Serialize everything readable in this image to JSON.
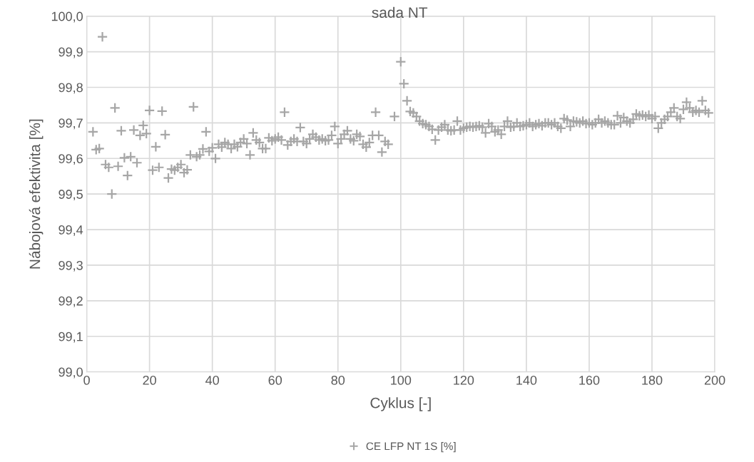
{
  "chart_data": {
    "type": "scatter",
    "title": "sada NT",
    "xlabel": "Cyklus [-]",
    "ylabel": "Nábojová efektivita [%]",
    "xlim": [
      0,
      200
    ],
    "xticks": [
      0,
      20,
      40,
      60,
      80,
      100,
      120,
      140,
      160,
      180,
      200
    ],
    "ylim": [
      99.0,
      100.0
    ],
    "yticks": [
      {
        "value": 99.0,
        "label": "99,0"
      },
      {
        "value": 99.1,
        "label": "99,1"
      },
      {
        "value": 99.2,
        "label": "99,2"
      },
      {
        "value": 99.3,
        "label": "99,3"
      },
      {
        "value": 99.4,
        "label": "99,4"
      },
      {
        "value": 99.5,
        "label": "99,5"
      },
      {
        "value": 99.6,
        "label": "99,6"
      },
      {
        "value": 99.7,
        "label": "99,7"
      },
      {
        "value": 99.8,
        "label": "99,8"
      },
      {
        "value": 99.9,
        "label": "99,9"
      },
      {
        "value": 100.0,
        "label": "100,0"
      }
    ],
    "grid": true,
    "legend": "bottom",
    "marker": "cross",
    "series": [
      {
        "name": "CE LFP NT 1S [%]",
        "color": "#a6a6a6",
        "x": [
          2,
          3,
          4,
          5,
          6,
          7,
          8,
          9,
          10,
          11,
          12,
          13,
          14,
          15,
          16,
          17,
          18,
          19,
          20,
          21,
          22,
          23,
          24,
          25,
          26,
          27,
          28,
          29,
          30,
          31,
          32,
          33,
          34,
          35,
          36,
          37,
          38,
          39,
          40,
          41,
          42,
          43,
          44,
          45,
          46,
          47,
          48,
          49,
          50,
          51,
          52,
          53,
          54,
          55,
          56,
          57,
          58,
          59,
          60,
          61,
          62,
          63,
          64,
          65,
          66,
          67,
          68,
          69,
          70,
          71,
          72,
          73,
          74,
          75,
          76,
          77,
          78,
          79,
          80,
          81,
          82,
          83,
          84,
          85,
          86,
          87,
          88,
          89,
          90,
          91,
          92,
          93,
          94,
          95,
          96,
          98,
          100,
          101,
          102,
          103,
          104,
          105,
          106,
          107,
          108,
          109,
          110,
          111,
          112,
          113,
          114,
          115,
          116,
          117,
          118,
          119,
          120,
          121,
          122,
          123,
          124,
          125,
          126,
          127,
          128,
          129,
          130,
          131,
          132,
          133,
          134,
          135,
          136,
          137,
          138,
          139,
          140,
          141,
          142,
          143,
          144,
          145,
          146,
          147,
          148,
          149,
          150,
          151,
          152,
          153,
          154,
          155,
          156,
          157,
          158,
          159,
          160,
          161,
          162,
          163,
          164,
          165,
          166,
          167,
          168,
          169,
          170,
          171,
          172,
          173,
          174,
          175,
          176,
          177,
          178,
          179,
          180,
          181,
          182,
          183,
          184,
          185,
          186,
          187,
          188,
          189,
          190,
          191,
          192,
          193,
          194,
          195,
          196,
          197,
          198
        ],
        "values": [
          99.675,
          99.625,
          99.628,
          99.942,
          99.583,
          99.575,
          99.5,
          99.742,
          99.578,
          99.678,
          99.602,
          99.552,
          99.605,
          99.68,
          99.588,
          99.665,
          99.693,
          99.67,
          99.735,
          99.567,
          99.633,
          99.575,
          99.733,
          99.667,
          99.545,
          99.57,
          99.567,
          99.575,
          99.583,
          99.56,
          99.568,
          99.61,
          99.745,
          99.605,
          99.61,
          99.627,
          99.675,
          99.62,
          99.63,
          99.6,
          99.64,
          99.632,
          99.645,
          99.64,
          99.628,
          99.64,
          99.633,
          99.645,
          99.655,
          99.642,
          99.61,
          99.672,
          99.652,
          99.645,
          99.628,
          99.628,
          99.658,
          99.65,
          99.655,
          99.66,
          99.652,
          99.73,
          99.638,
          99.648,
          99.655,
          99.648,
          99.687,
          99.648,
          99.642,
          99.655,
          99.668,
          99.66,
          99.652,
          99.655,
          99.65,
          99.652,
          99.665,
          99.69,
          99.642,
          99.655,
          99.668,
          99.678,
          99.655,
          99.65,
          99.668,
          99.662,
          99.64,
          99.632,
          99.645,
          99.665,
          99.73,
          99.665,
          99.618,
          99.648,
          99.64,
          99.718,
          99.872,
          99.81,
          99.762,
          99.732,
          99.728,
          99.718,
          99.705,
          99.698,
          99.695,
          99.69,
          99.682,
          99.652,
          99.68,
          99.688,
          99.695,
          99.68,
          99.678,
          99.68,
          99.705,
          99.68,
          99.685,
          99.688,
          99.69,
          99.688,
          99.69,
          99.692,
          99.688,
          99.672,
          99.698,
          99.69,
          99.675,
          99.68,
          99.668,
          99.69,
          99.705,
          99.688,
          99.69,
          99.7,
          99.69,
          99.692,
          99.695,
          99.7,
          99.69,
          99.695,
          99.698,
          99.692,
          99.7,
          99.7,
          99.695,
          99.7,
          99.69,
          99.685,
          99.712,
          99.708,
          99.69,
          99.705,
          99.703,
          99.7,
          99.705,
          99.698,
          99.7,
          99.695,
          99.7,
          99.71,
          99.7,
          99.705,
          99.7,
          99.695,
          99.695,
          99.72,
          99.7,
          99.715,
          99.705,
          99.7,
          99.71,
          99.725,
          99.72,
          99.722,
          99.718,
          99.722,
          99.712,
          99.718,
          99.685,
          99.7,
          99.71,
          99.718,
          99.73,
          99.742,
          99.718,
          99.712,
          99.738,
          99.758,
          99.742,
          99.73,
          99.735,
          99.73,
          99.762,
          99.735,
          99.728
        ]
      }
    ]
  }
}
